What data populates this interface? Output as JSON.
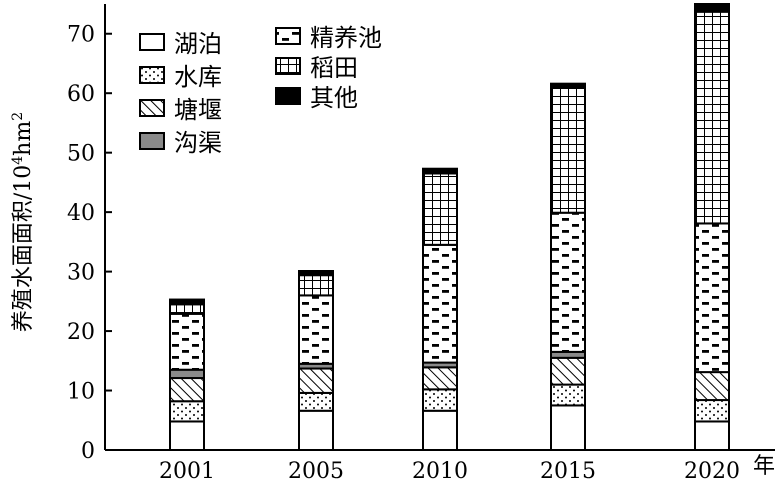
{
  "chart_data": {
    "type": "bar",
    "stacked": true,
    "title": "",
    "xlabel": "年",
    "ylabel": "养殖水面面积/10⁴hm²",
    "ylabel_parts": {
      "main": "养殖水面面积/10",
      "sup": "4",
      "mid": "hm",
      "sup2": "2"
    },
    "categories": [
      "2001",
      "2005",
      "2010",
      "2015",
      "2020"
    ],
    "ylim": [
      0,
      75
    ],
    "yticks": [
      0,
      10,
      20,
      30,
      40,
      50,
      60,
      70
    ],
    "grid": false,
    "legend_position": "top-left",
    "series": [
      {
        "name": "湖泊",
        "pattern": "blank",
        "values": [
          4.8,
          6.6,
          6.6,
          7.5,
          4.8
        ]
      },
      {
        "name": "水库",
        "pattern": "dots",
        "values": [
          3.4,
          3.0,
          3.6,
          3.5,
          3.6
        ]
      },
      {
        "name": "塘堰",
        "pattern": "hatch",
        "values": [
          3.9,
          4.1,
          3.7,
          4.5,
          4.7
        ]
      },
      {
        "name": "沟渠",
        "pattern": "gray",
        "values": [
          1.4,
          0.8,
          0.8,
          1.0,
          0.0
        ]
      },
      {
        "name": "精养池",
        "pattern": "dashes",
        "values": [
          9.4,
          11.5,
          19.8,
          23.4,
          25.0
        ]
      },
      {
        "name": "稻田",
        "pattern": "grid",
        "values": [
          1.6,
          3.4,
          12.0,
          21.0,
          35.6
        ]
      },
      {
        "name": "其他",
        "pattern": "black",
        "values": [
          0.8,
          0.7,
          0.8,
          0.7,
          1.3
        ]
      }
    ]
  }
}
